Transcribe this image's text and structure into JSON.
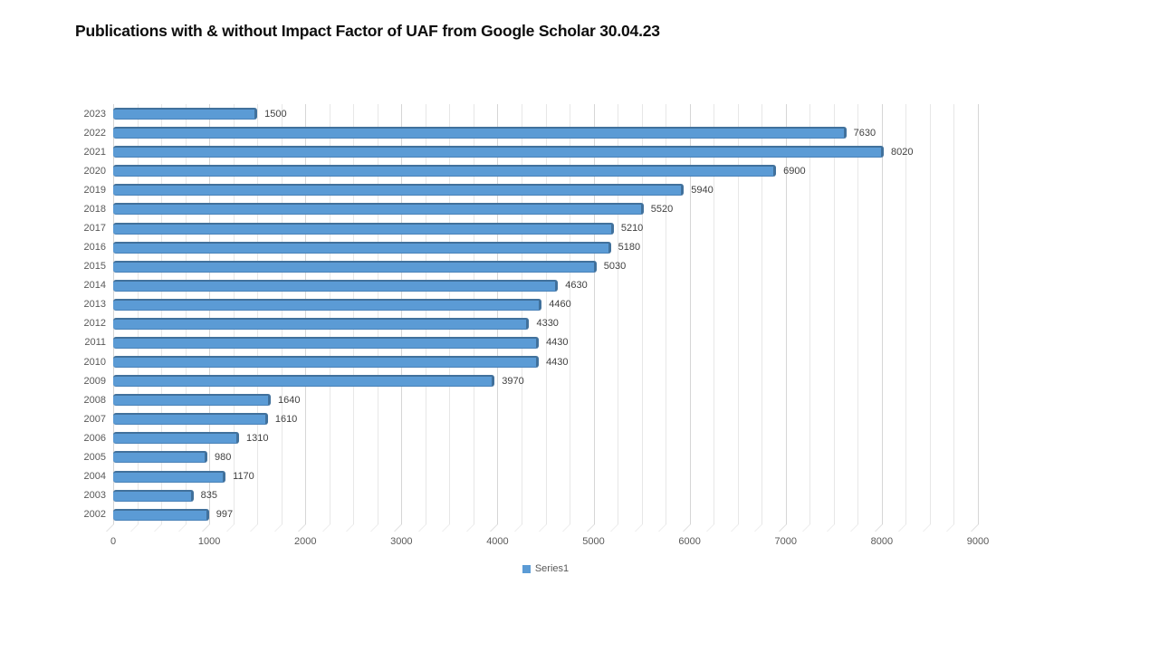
{
  "chart_data": {
    "type": "bar",
    "orientation": "horizontal",
    "title": "Publications with & without Impact Factor of UAF from Google Scholar 30.04.23",
    "categories": [
      "2023",
      "2022",
      "2021",
      "2020",
      "2019",
      "2018",
      "2017",
      "2016",
      "2015",
      "2014",
      "2013",
      "2012",
      "2011",
      "2010",
      "2009",
      "2008",
      "2007",
      "2006",
      "2005",
      "2004",
      "2003",
      "2002"
    ],
    "values": [
      1500,
      7630,
      8020,
      6900,
      5940,
      5520,
      5210,
      5180,
      5030,
      4630,
      4460,
      4330,
      4430,
      4430,
      3970,
      1640,
      1610,
      1310,
      980,
      1170,
      835,
      997
    ],
    "xlabel": "",
    "ylabel": "",
    "xlim": [
      0,
      9000
    ],
    "x_major_ticks": [
      0,
      1000,
      2000,
      3000,
      4000,
      5000,
      6000,
      7000,
      8000,
      9000
    ],
    "x_minor_unit": 250,
    "grid": true,
    "data_labels_shown": true,
    "legend": [
      "Series1"
    ],
    "legend_position": "bottom",
    "colors": {
      "bar_fill": "#5B9BD5",
      "bar_edge": "#41719C",
      "bar_bottom_edge": "#4A82B8",
      "grid_major": "#D6D6D6",
      "grid_minor": "#E7E7E7",
      "axis_text": "#595959",
      "data_label_text": "#404040",
      "title_text": "#0D0D0D",
      "background": "#FFFFFF"
    }
  }
}
